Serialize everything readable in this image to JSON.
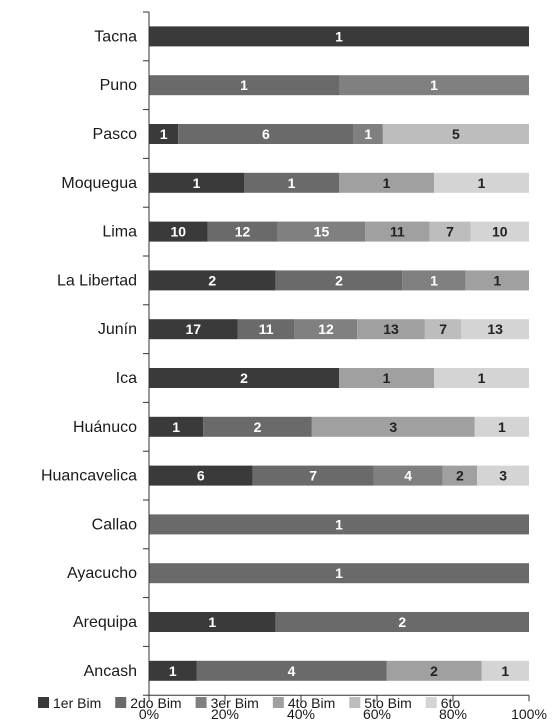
{
  "chart_data": {
    "type": "bar",
    "orientation": "horizontal",
    "stacked": "percent",
    "categories": [
      "Tacna",
      "Puno",
      "Pasco",
      "Moquegua",
      "Lima",
      "La Libertad",
      "Junín",
      "Ica",
      "Huánuco",
      "Huancavelica",
      "Callao",
      "Ayacucho",
      "Arequipa",
      "Ancash"
    ],
    "series": [
      {
        "name": "1er Bim",
        "color": "#3a3a3a",
        "values": [
          1,
          0,
          1,
          1,
          10,
          2,
          17,
          2,
          1,
          6,
          0,
          0,
          1,
          1
        ]
      },
      {
        "name": "2do Bim",
        "color": "#6a6a6a",
        "values": [
          0,
          1,
          6,
          1,
          12,
          2,
          11,
          0,
          2,
          7,
          1,
          1,
          2,
          4
        ]
      },
      {
        "name": "3er Bim",
        "color": "#808080",
        "values": [
          0,
          1,
          1,
          0,
          15,
          1,
          12,
          0,
          0,
          4,
          0,
          0,
          0,
          0
        ]
      },
      {
        "name": "4to Bim",
        "color": "#a0a0a0",
        "values": [
          0,
          0,
          0,
          1,
          11,
          1,
          13,
          1,
          3,
          2,
          0,
          0,
          0,
          2
        ]
      },
      {
        "name": "5to Bim",
        "color": "#bdbdbd",
        "values": [
          0,
          0,
          5,
          0,
          7,
          0,
          7,
          0,
          0,
          0,
          0,
          0,
          0,
          0
        ]
      },
      {
        "name": "6to",
        "color": "#d4d4d4",
        "values": [
          0,
          0,
          0,
          1,
          10,
          0,
          13,
          1,
          1,
          3,
          0,
          0,
          0,
          1
        ]
      }
    ],
    "x_ticks": [
      "0%",
      "20%",
      "40%",
      "60%",
      "80%",
      "100%"
    ],
    "xlim": [
      0,
      100
    ],
    "grid": false,
    "legend_position": "bottom"
  }
}
